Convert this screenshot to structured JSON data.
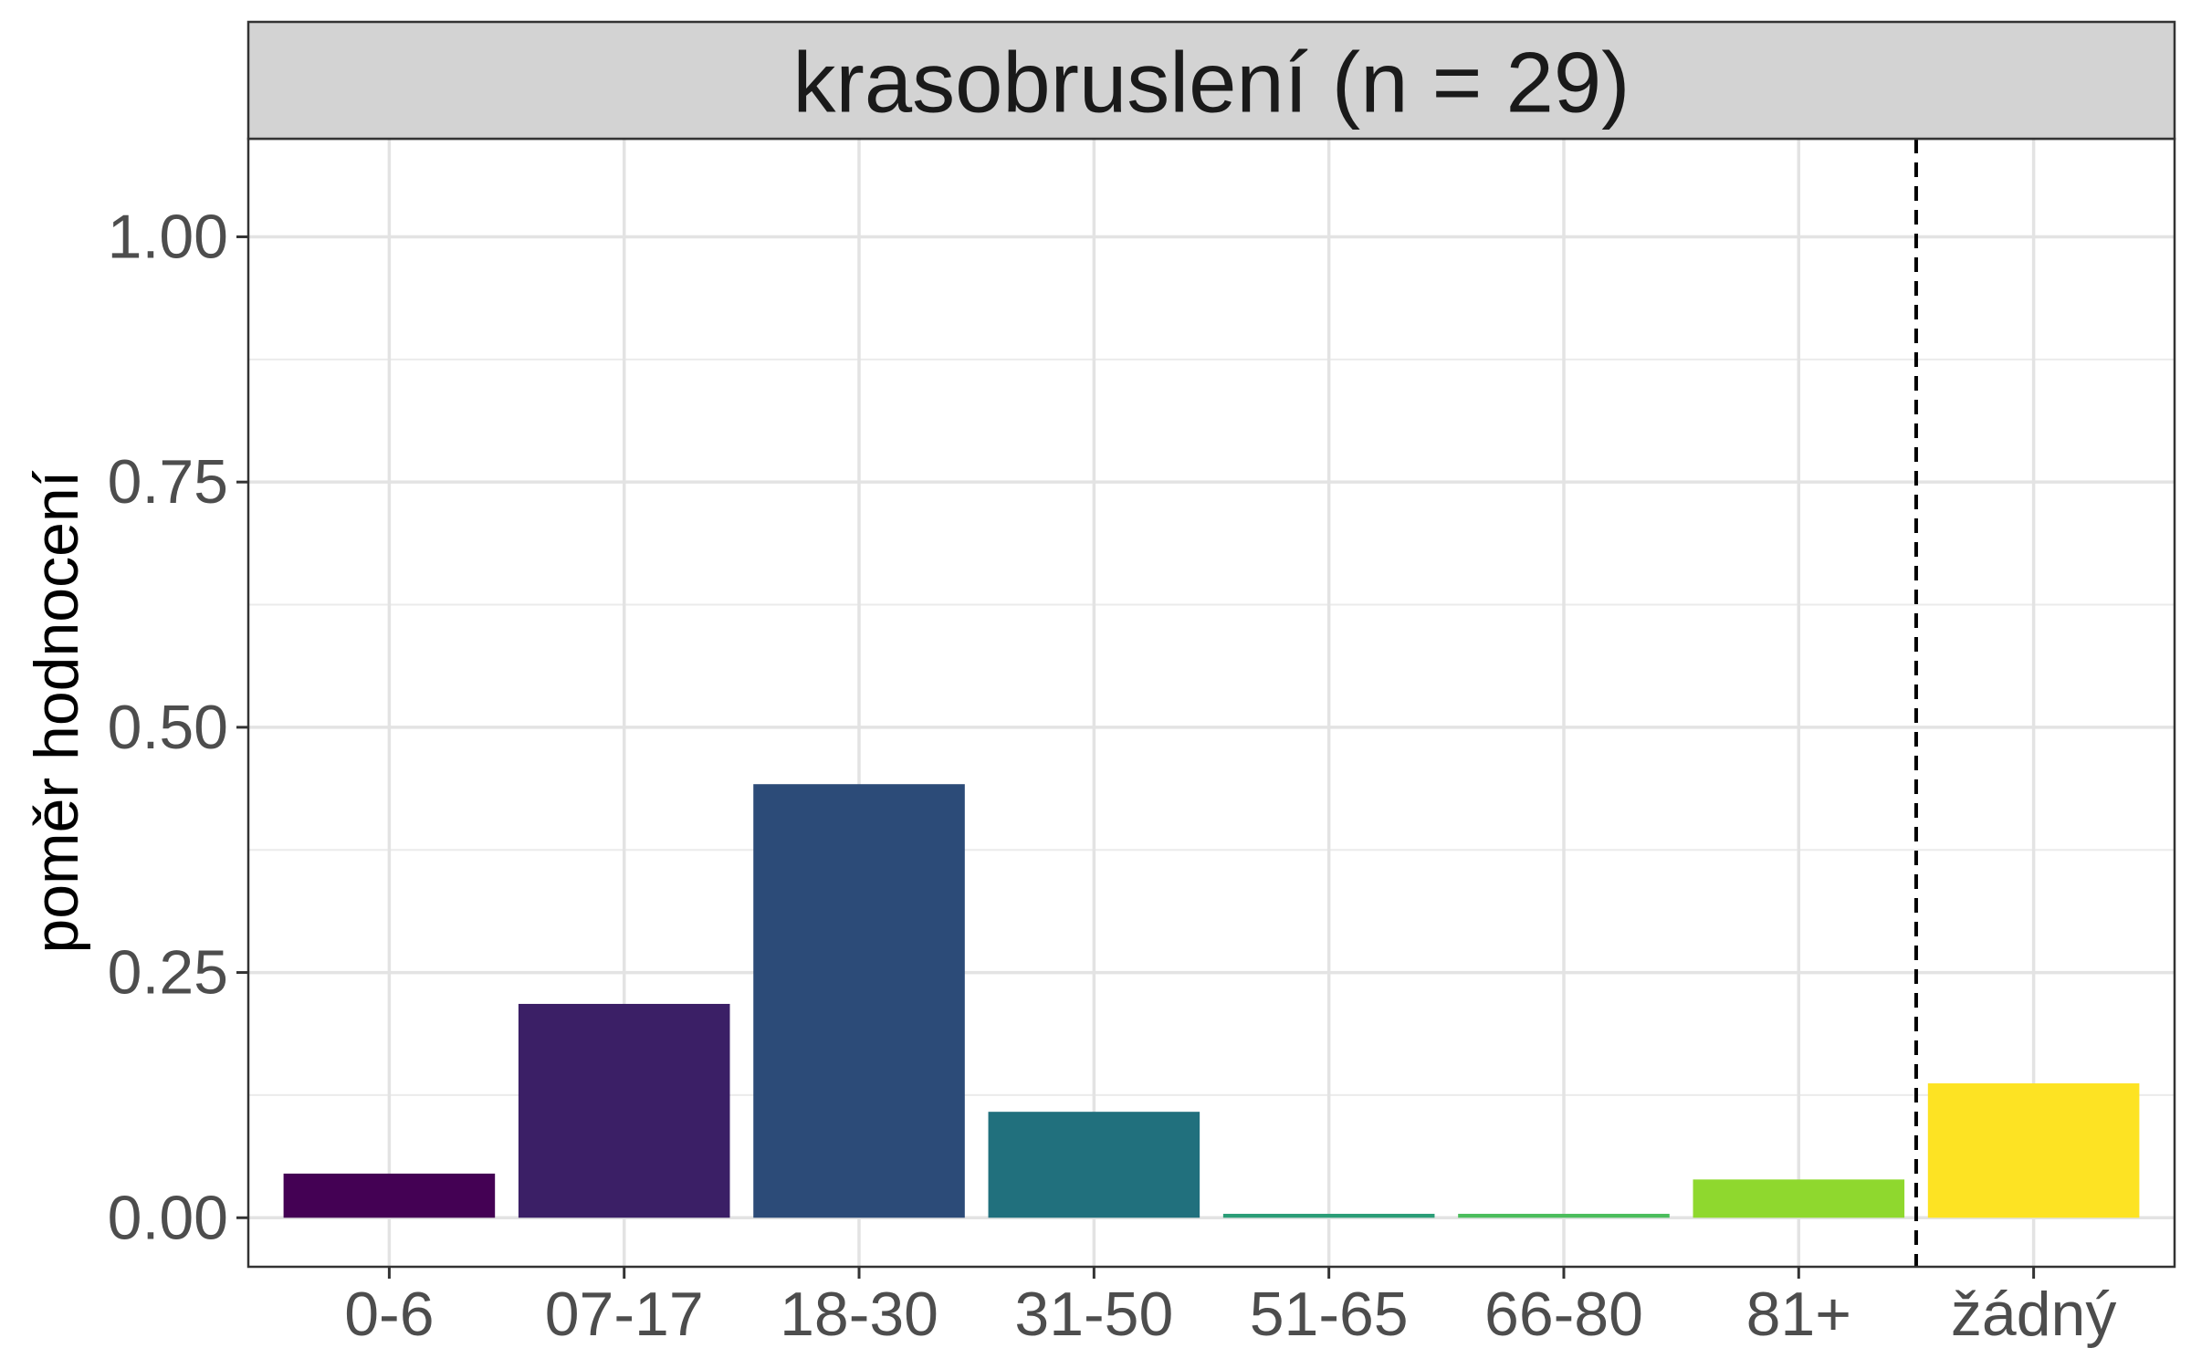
{
  "chart_data": {
    "type": "bar",
    "title": "krasobruslení (n = 29)",
    "xlabel": "",
    "ylabel": "poměr hodnocení",
    "categories": [
      "0-6",
      "07-17",
      "18-30",
      "31-50",
      "51-65",
      "66-80",
      "81+",
      "žádný"
    ],
    "values": [
      0.045,
      0.218,
      0.442,
      0.108,
      0.004,
      0.004,
      0.039,
      0.137
    ],
    "colors": [
      "#440154",
      "#3B1F66",
      "#2C4B78",
      "#21707D",
      "#2A9D77",
      "#4BBD5C",
      "#8FD82E",
      "#FDE323"
    ],
    "ylim": [
      -0.05,
      1.1
    ],
    "yticks": [
      0.0,
      0.25,
      0.5,
      0.75,
      1.0
    ],
    "ytick_labels": [
      "0.00",
      "0.25",
      "0.50",
      "0.75",
      "1.00"
    ],
    "divider_between": [
      "81+",
      "žádný"
    ],
    "grid": true,
    "legend": "none"
  }
}
